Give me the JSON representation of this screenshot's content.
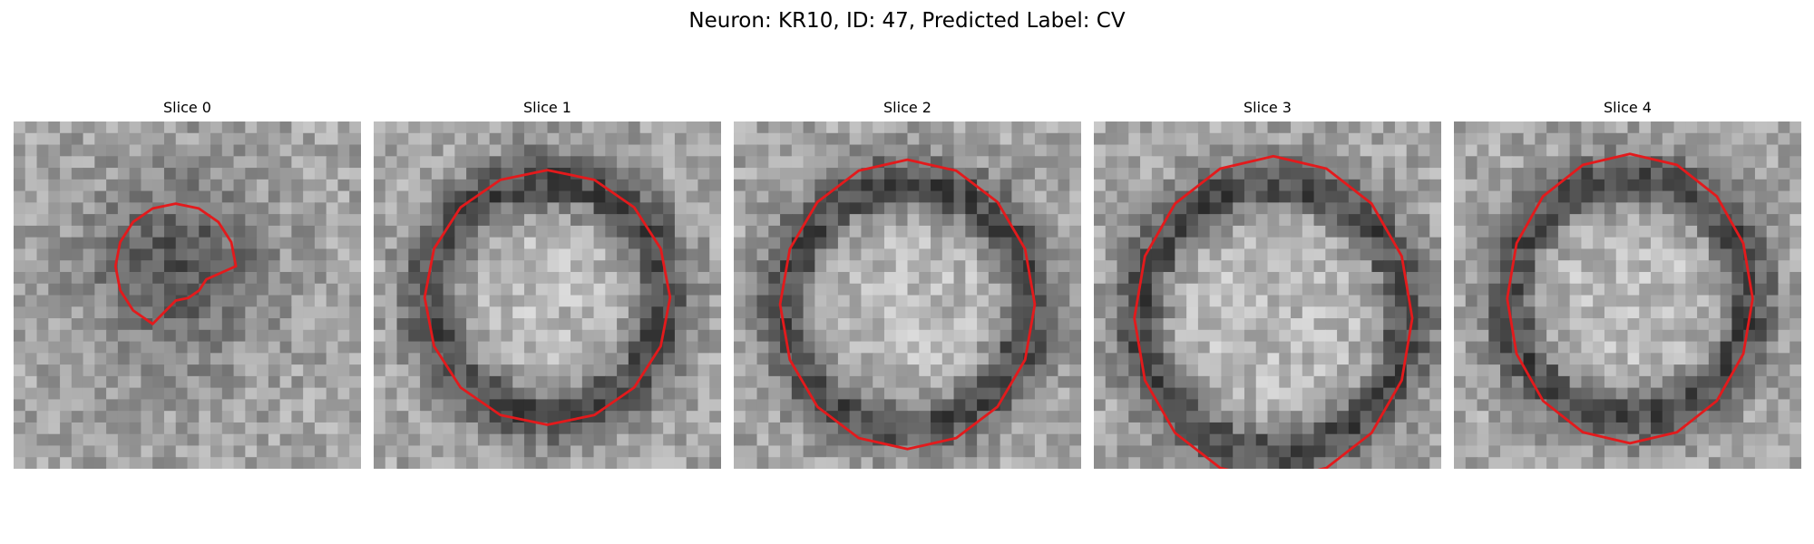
{
  "figure": {
    "title": "Neuron: KR10, ID: 47, Predicted Label: CV"
  },
  "panels": [
    {
      "title": "Slice 0",
      "image": "grayscale-microscopy-patch",
      "outline_color": "#e31a1c"
    },
    {
      "title": "Slice 1",
      "image": "grayscale-microscopy-patch",
      "outline_color": "#e31a1c"
    },
    {
      "title": "Slice 2",
      "image": "grayscale-microscopy-patch",
      "outline_color": "#e31a1c"
    },
    {
      "title": "Slice 3",
      "image": "grayscale-microscopy-patch",
      "outline_color": "#e31a1c"
    },
    {
      "title": "Slice 4",
      "image": "grayscale-microscopy-patch",
      "outline_color": "#e31a1c"
    }
  ]
}
